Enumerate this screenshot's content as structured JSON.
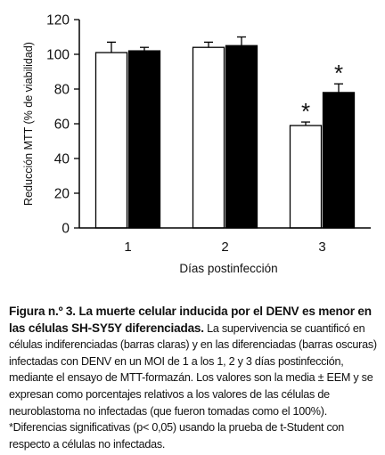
{
  "chart_data": {
    "type": "bar",
    "title": "",
    "xlabel": "Días postinfección",
    "ylabel": "Reducción MTT (% de viabilidad)",
    "ylim": [
      0,
      120
    ],
    "yticks": [
      0,
      20,
      40,
      60,
      80,
      100,
      120
    ],
    "categories": [
      "1",
      "2",
      "3"
    ],
    "series": [
      {
        "values": [
          101,
          104,
          59
        ],
        "errors": [
          6,
          3,
          2
        ],
        "fill": "#ffffff"
      },
      {
        "values": [
          102,
          105,
          78
        ],
        "errors": [
          2,
          5,
          5
        ],
        "fill": "#000000"
      }
    ],
    "annotations": [
      {
        "category": "3",
        "series": 0,
        "text": "*"
      },
      {
        "category": "3",
        "series": 1,
        "text": "*"
      }
    ],
    "grid": false,
    "legend": "none"
  },
  "caption": {
    "bold": "Figura n.º 3. La muerte celular inducida por el DENV es menor en las células SH-SY5Y diferenciadas.",
    "text": "La supervivencia se cuantificó en células indiferenciadas (barras claras) y en las diferenciadas (barras oscuras) infectadas con DENV en un MOI de 1 a los 1, 2 y 3 días postinfección, mediante el ensayo de MTT-formazán. Los valores son la media ± EEM y se expresan como porcentajes relativos a los valores de las células de neuroblastoma no infectadas (que fueron tomadas como el 100%). *Diferencias significativas (p< 0,05) usando la prueba de t-Student con respecto a células no infectadas."
  }
}
